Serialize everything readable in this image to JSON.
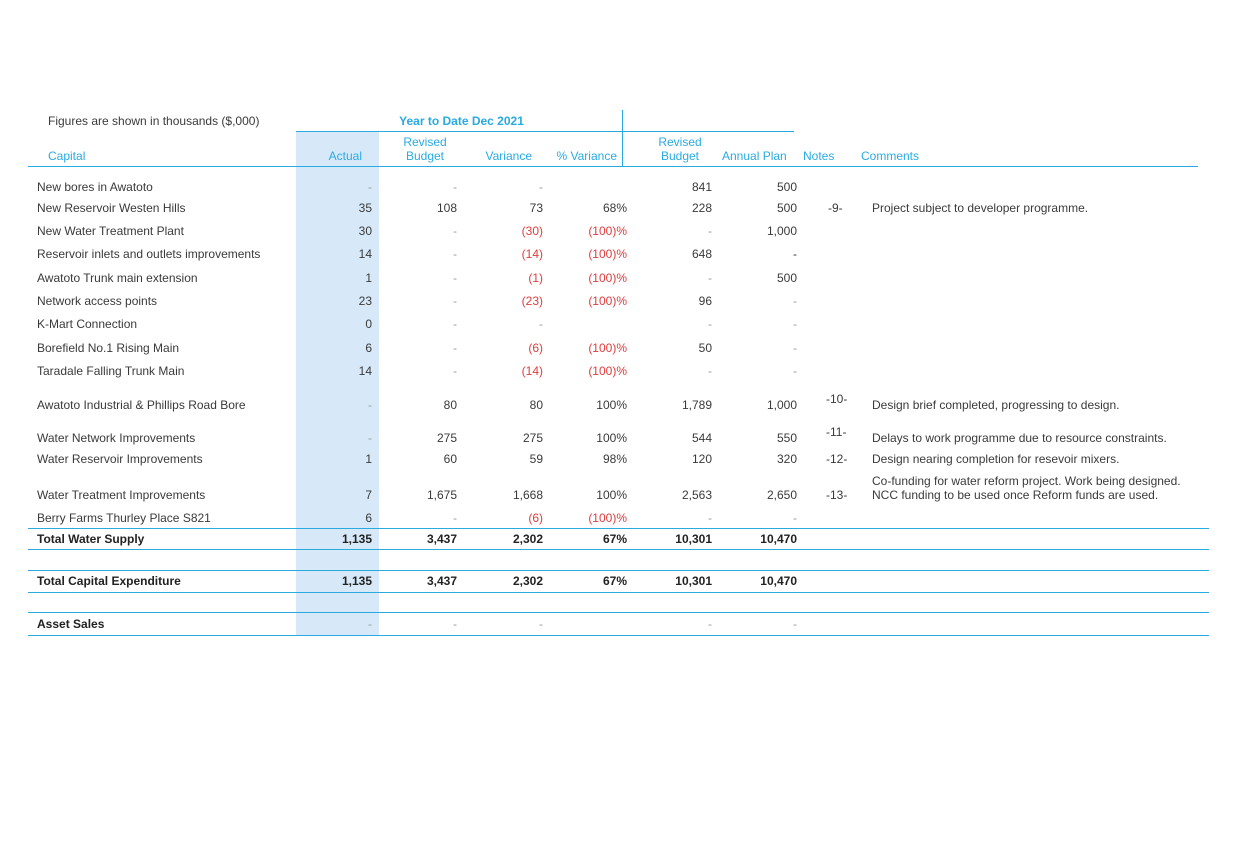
{
  "note": "Figures are shown in thousands ($,000)",
  "period": "Year to Date Dec 2021",
  "headers": {
    "capital": "Capital",
    "actual": "Actual",
    "revised_budget": [
      "Revised",
      "Budget"
    ],
    "variance": "Variance",
    "pct_variance": "% Variance",
    "revised_budget_annual": [
      "Revised",
      "Budget"
    ],
    "annual_plan": "Annual Plan",
    "notes": "Notes",
    "comments": "Comments"
  },
  "rows": [
    {
      "name": "New bores in Awatoto",
      "actual": "-",
      "budget": "-",
      "variance": "-",
      "pct": "",
      "rev_budget": "841",
      "annual": "500",
      "note": "",
      "comment": ""
    },
    {
      "name": "New Reservoir Westen Hills",
      "actual": "35",
      "budget": "108",
      "variance": "73",
      "pct": "68%",
      "rev_budget": "228",
      "annual": "500",
      "note": "-9-",
      "comment": "Project subject to developer programme."
    },
    {
      "name": "New Water Treatment Plant",
      "actual": "30",
      "budget": "-",
      "variance": "(30)",
      "pct": "(100)%",
      "rev_budget": "-",
      "annual": "1,000",
      "note": "",
      "comment": ""
    },
    {
      "name": "Reservoir inlets and outlets improvements",
      "actual": "14",
      "budget": "-",
      "variance": "(14)",
      "pct": "(100)%",
      "rev_budget": "648",
      "annual": "-",
      "note": "",
      "comment": ""
    },
    {
      "name": "Awatoto Trunk main extension",
      "actual": "1",
      "budget": "-",
      "variance": "(1)",
      "pct": "(100)%",
      "rev_budget": "-",
      "annual": "500",
      "note": "",
      "comment": ""
    },
    {
      "name": "Network access points",
      "actual": "23",
      "budget": "-",
      "variance": "(23)",
      "pct": "(100)%",
      "rev_budget": "96",
      "annual": "-",
      "note": "",
      "comment": ""
    },
    {
      "name": "K-Mart Connection",
      "actual": "0",
      "budget": "-",
      "variance": "-",
      "pct": "",
      "rev_budget": "-",
      "annual": "-",
      "note": "",
      "comment": ""
    },
    {
      "name": "Borefield No.1 Rising Main",
      "actual": "6",
      "budget": "-",
      "variance": "(6)",
      "pct": "(100)%",
      "rev_budget": "50",
      "annual": "-",
      "note": "",
      "comment": ""
    },
    {
      "name": "Taradale Falling Trunk Main",
      "actual": "14",
      "budget": "-",
      "variance": "(14)",
      "pct": "(100)%",
      "rev_budget": "-",
      "annual": "-",
      "note": "",
      "comment": ""
    },
    {
      "name": "Awatoto Industrial & Phillips Road Bore",
      "actual": "-",
      "budget": "80",
      "variance": "80",
      "pct": "100%",
      "rev_budget": "1,789",
      "annual": "1,000",
      "note": "-10-",
      "comment": "Design brief completed, progressing to design."
    },
    {
      "name": "Water Network Improvements",
      "actual": "-",
      "budget": "275",
      "variance": "275",
      "pct": "100%",
      "rev_budget": "544",
      "annual": "550",
      "note": "-11-",
      "comment": "Delays to work programme due to resource constraints."
    },
    {
      "name": "Water Reservoir Improvements",
      "actual": "1",
      "budget": "60",
      "variance": "59",
      "pct": "98%",
      "rev_budget": "120",
      "annual": "320",
      "note": "-12-",
      "comment": "Design nearing completion for resevoir mixers."
    },
    {
      "name": "Water Treatment Improvements",
      "actual": "7",
      "budget": "1,675",
      "variance": "1,668",
      "pct": "100%",
      "rev_budget": "2,563",
      "annual": "2,650",
      "note": "-13-",
      "comment": "Co-funding for water reform project. Work being designed.",
      "comment2": "NCC funding to be used once Reform funds are used."
    },
    {
      "name": "Berry Farms Thurley Place S821",
      "actual": "6",
      "budget": "-",
      "variance": "(6)",
      "pct": "(100)%",
      "rev_budget": "-",
      "annual": "-",
      "note": "",
      "comment": ""
    }
  ],
  "totals": [
    {
      "name": "Total Water Supply",
      "actual": "1,135",
      "budget": "3,437",
      "variance": "2,302",
      "pct": "67%",
      "rev_budget": "10,301",
      "annual": "10,470"
    },
    {
      "name": "Total Capital Expenditure",
      "actual": "1,135",
      "budget": "3,437",
      "variance": "2,302",
      "pct": "67%",
      "rev_budget": "10,301",
      "annual": "10,470"
    },
    {
      "name": "Asset Sales",
      "actual": "-",
      "budget": "-",
      "variance": "-",
      "pct": "",
      "rev_budget": "-",
      "annual": "-"
    }
  ]
}
